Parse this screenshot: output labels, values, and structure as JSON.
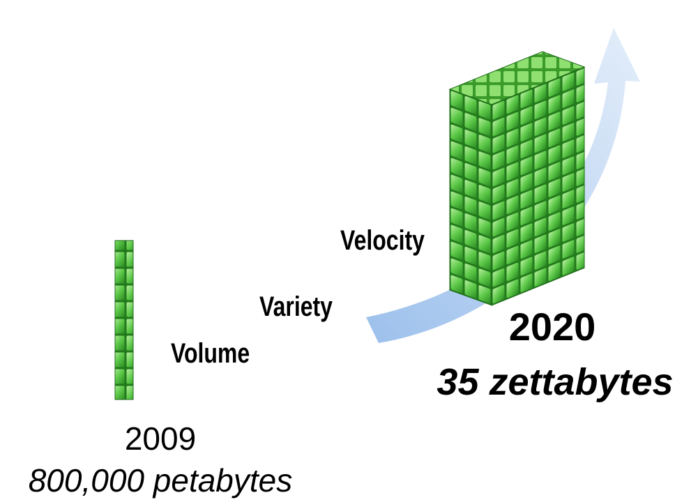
{
  "labels": {
    "velocity": "Velocity",
    "variety": "Variety",
    "volume": "Volume"
  },
  "start": {
    "year": "2009",
    "amount": "800,000 petabytes"
  },
  "end": {
    "year": "2020",
    "amount": "35 zettabytes"
  }
}
